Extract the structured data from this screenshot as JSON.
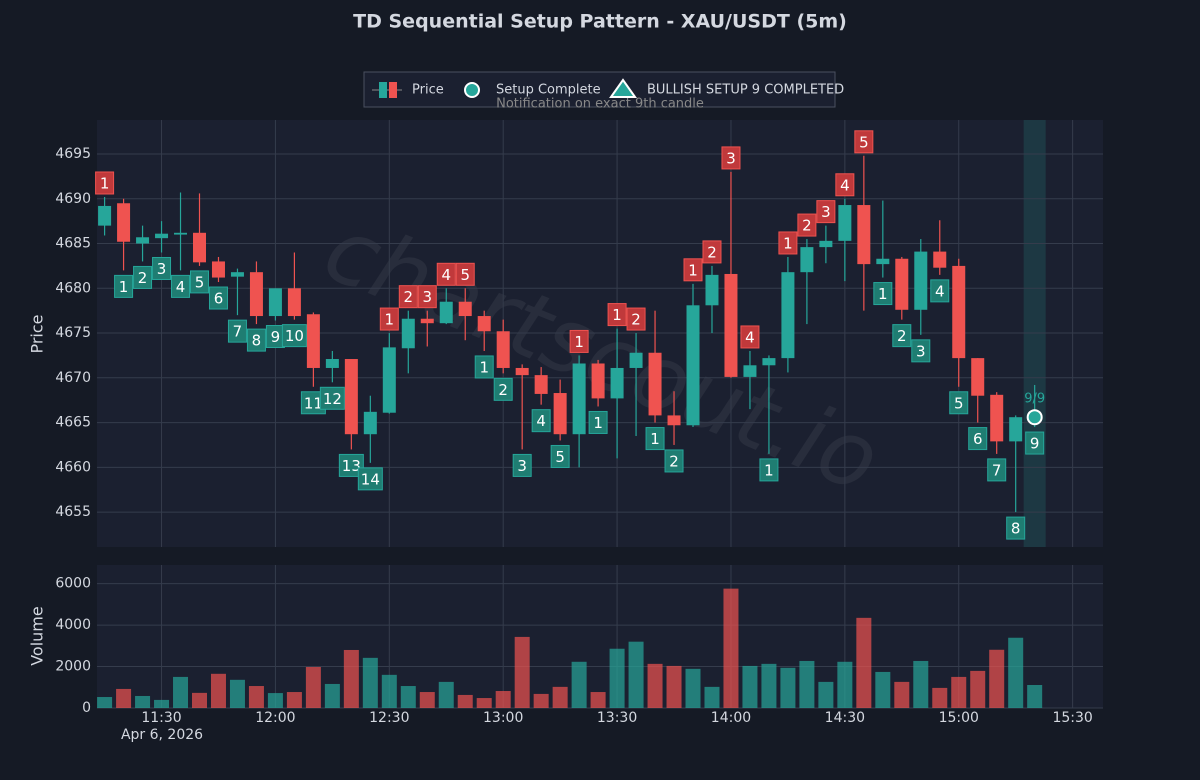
{
  "chart_data": {
    "type": "candlestick",
    "title": "TD Sequential Setup Pattern - XAU/USDT (5m)",
    "legend": [
      "Price",
      "Setup Complete",
      "BULLISH SETUP 9 COMPLETED"
    ],
    "annotation": "Notification on exact 9th candle",
    "watermark": "chartscout.io",
    "y_label": "Price",
    "y2_label": "Volume",
    "date_label": "Apr 6, 2026",
    "up_color": "#26a69a",
    "down_color": "#ef5350",
    "grid": true,
    "x": [
      "11:15",
      "11:20",
      "11:25",
      "11:30",
      "11:35",
      "11:40",
      "11:45",
      "11:50",
      "11:55",
      "12:00",
      "12:05",
      "12:10",
      "12:15",
      "12:20",
      "12:25",
      "12:30",
      "12:35",
      "12:40",
      "12:45",
      "12:50",
      "12:55",
      "13:00",
      "13:05",
      "13:10",
      "13:15",
      "13:20",
      "13:25",
      "13:30",
      "13:35",
      "13:40",
      "13:45",
      "13:50",
      "13:55",
      "14:00",
      "14:05",
      "14:10",
      "14:15",
      "14:20",
      "14:25",
      "14:30",
      "14:35",
      "14:40",
      "14:45",
      "14:50",
      "14:55",
      "15:00",
      "15:05",
      "15:10",
      "15:15",
      "15:20"
    ],
    "open": [
      4687.0,
      4689.5,
      4685.0,
      4685.6,
      4686.0,
      4686.2,
      4683.0,
      4681.3,
      4681.8,
      4676.9,
      4680.0,
      4677.1,
      4671.1,
      4672.1,
      4663.7,
      4666.1,
      4673.3,
      4676.6,
      4676.1,
      4678.5,
      4676.9,
      4675.2,
      4671.1,
      4670.3,
      4668.3,
      4663.7,
      4671.6,
      4667.7,
      4671.1,
      4672.8,
      4665.8,
      4664.7,
      4678.1,
      4681.6,
      4670.1,
      4671.4,
      4672.2,
      4681.8,
      4684.6,
      4685.3,
      4689.3,
      4682.7,
      4683.3,
      4677.6,
      4684.1,
      4682.5,
      4672.2,
      4668.1,
      4662.9,
      4665.3
    ],
    "high": [
      4690.2,
      4690.0,
      4687.0,
      4687.5,
      4690.7,
      4690.6,
      4683.5,
      4682.2,
      4683.0,
      4680.0,
      4684.0,
      4677.3,
      4673.0,
      4672.1,
      4668.0,
      4675.0,
      4677.5,
      4677.5,
      4680.0,
      4680.0,
      4677.5,
      4676.5,
      4671.5,
      4671.2,
      4669.8,
      4672.5,
      4672.0,
      4675.5,
      4675.0,
      4677.5,
      4668.5,
      4680.5,
      4682.5,
      4693.0,
      4673.0,
      4672.5,
      4683.5,
      4685.5,
      4687.0,
      4690.0,
      4694.8,
      4689.8,
      4683.5,
      4685.5,
      4687.6,
      4683.3,
      4672.2,
      4668.4,
      4665.8,
      4669.2
    ],
    "low": [
      4685.9,
      4682.0,
      4683.0,
      4684.0,
      4682.0,
      4682.5,
      4680.7,
      4677.0,
      4676.0,
      4676.4,
      4676.5,
      4669.0,
      4669.5,
      4662.0,
      4660.5,
      4666.0,
      4670.5,
      4673.5,
      4676.0,
      4674.2,
      4673.0,
      4670.5,
      4662.0,
      4667.0,
      4663.0,
      4660.0,
      4666.8,
      4661.0,
      4663.5,
      4665.0,
      4662.5,
      4664.5,
      4675.0,
      4670.0,
      4666.5,
      4661.5,
      4670.6,
      4676.0,
      4682.8,
      4680.8,
      4677.5,
      4681.2,
      4676.5,
      4674.8,
      4681.5,
      4669.0,
      4665.0,
      4661.5,
      4655.0,
      4664.5
    ],
    "close": [
      4689.2,
      4685.2,
      4685.7,
      4686.1,
      4686.2,
      4682.9,
      4681.2,
      4681.8,
      4676.9,
      4680.0,
      4676.9,
      4671.1,
      4672.1,
      4663.7,
      4666.2,
      4673.4,
      4676.6,
      4676.1,
      4678.5,
      4676.9,
      4675.2,
      4671.1,
      4670.3,
      4668.2,
      4663.7,
      4671.6,
      4667.7,
      4671.1,
      4672.8,
      4665.8,
      4664.7,
      4678.1,
      4681.5,
      4670.1,
      4671.4,
      4672.2,
      4681.8,
      4684.6,
      4685.3,
      4689.3,
      4682.7,
      4683.3,
      4677.6,
      4684.1,
      4682.3,
      4672.2,
      4668.0,
      4662.9,
      4665.6,
      4665.6
    ],
    "volume": [
      530,
      920,
      580,
      390,
      1500,
      730,
      1650,
      1360,
      1060,
      720,
      770,
      1980,
      1160,
      2800,
      2420,
      1600,
      1060,
      770,
      1260,
      630,
      480,
      820,
      3430,
      680,
      1020,
      2230,
      770,
      2860,
      3200,
      2130,
      2030,
      1890,
      1020,
      5760,
      2030,
      2130,
      1940,
      2270,
      1260,
      2230,
      4350,
      1740,
      1260,
      2270,
      970,
      1500,
      1790,
      2810,
      3390,
      1110
    ],
    "td_counts": [
      1,
      1,
      2,
      3,
      4,
      5,
      6,
      7,
      8,
      9,
      10,
      11,
      12,
      13,
      14,
      1,
      2,
      3,
      4,
      5,
      1,
      2,
      3,
      4,
      5,
      1,
      1,
      1,
      2,
      1,
      2,
      1,
      2,
      3,
      4,
      1,
      1,
      2,
      3,
      4,
      5,
      1,
      2,
      3,
      4,
      5,
      6,
      7,
      8,
      9
    ],
    "td_side": [
      "up",
      "down",
      "down",
      "down",
      "down",
      "down",
      "down",
      "down",
      "down",
      "down",
      "down",
      "down",
      "down",
      "down",
      "down",
      "up",
      "up",
      "up",
      "up",
      "up",
      "down",
      "down",
      "down",
      "down",
      "down",
      "up",
      "down",
      "up",
      "up",
      "down",
      "down",
      "up",
      "up",
      "up",
      "up",
      "down",
      "up",
      "up",
      "up",
      "up",
      "up",
      "down",
      "down",
      "down",
      "down",
      "down",
      "down",
      "down",
      "down",
      "down"
    ],
    "setup_complete": {
      "x": "15:20",
      "value": 4665.6,
      "label": "9/9"
    },
    "xlim": [
      "11:13",
      "15:38"
    ],
    "xticks": [
      "11:30",
      "12:00",
      "12:30",
      "13:00",
      "13:30",
      "14:00",
      "14:30",
      "15:00",
      "15:30"
    ],
    "ylim": [
      4651.1,
      4698.8
    ],
    "yticks": [
      4655,
      4660,
      4665,
      4670,
      4675,
      4680,
      4685,
      4690,
      4695
    ],
    "y2lim": [
      0,
      6900
    ],
    "y2ticks": [
      0,
      2000,
      4000,
      6000
    ]
  }
}
